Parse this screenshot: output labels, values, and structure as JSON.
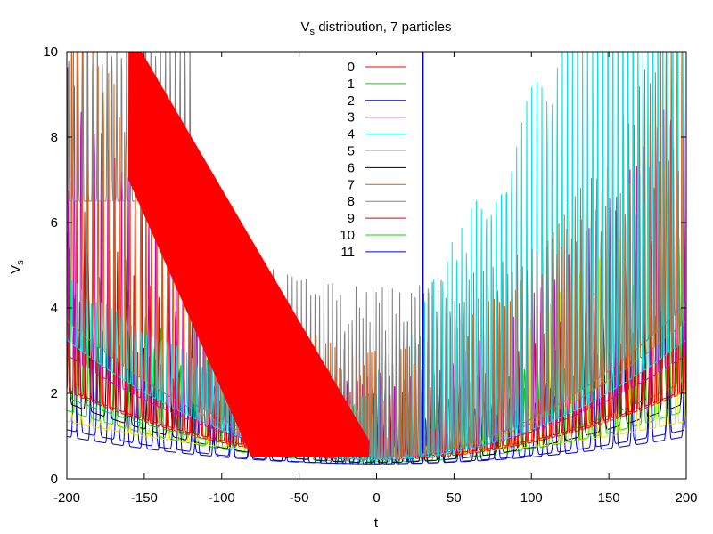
{
  "chart_data": {
    "type": "line",
    "title": "V",
    "title_sub": "s",
    "title_rest": " distribution, 7 particles",
    "xlabel": "t",
    "ylabel": "V",
    "ylabel_sub": "s",
    "xlim": [
      -200,
      200
    ],
    "ylim": [
      0,
      10
    ],
    "xticks": [
      "-200",
      "-150",
      "-100",
      "-50",
      "0",
      "50",
      "100",
      "150",
      "200"
    ],
    "yticks": [
      "0",
      "2",
      "4",
      "6",
      "8",
      "10"
    ],
    "grid": false,
    "legend_position": "top-center",
    "series": [
      {
        "name": "0",
        "color": "#ff0000"
      },
      {
        "name": "1",
        "color": "#00cc00"
      },
      {
        "name": "2",
        "color": "#0000cc"
      },
      {
        "name": "3",
        "color": "#cc00cc"
      },
      {
        "name": "4",
        "color": "#00e5e5"
      },
      {
        "name": "5",
        "color": "#e5e500"
      },
      {
        "name": "6",
        "color": "#000000"
      },
      {
        "name": "7",
        "color": "#e55c00"
      },
      {
        "name": "8",
        "color": "#808080"
      },
      {
        "name": "9",
        "color": "#e50000"
      },
      {
        "name": "10",
        "color": "#00e500"
      },
      {
        "name": "11",
        "color": "#0000e5"
      }
    ]
  }
}
